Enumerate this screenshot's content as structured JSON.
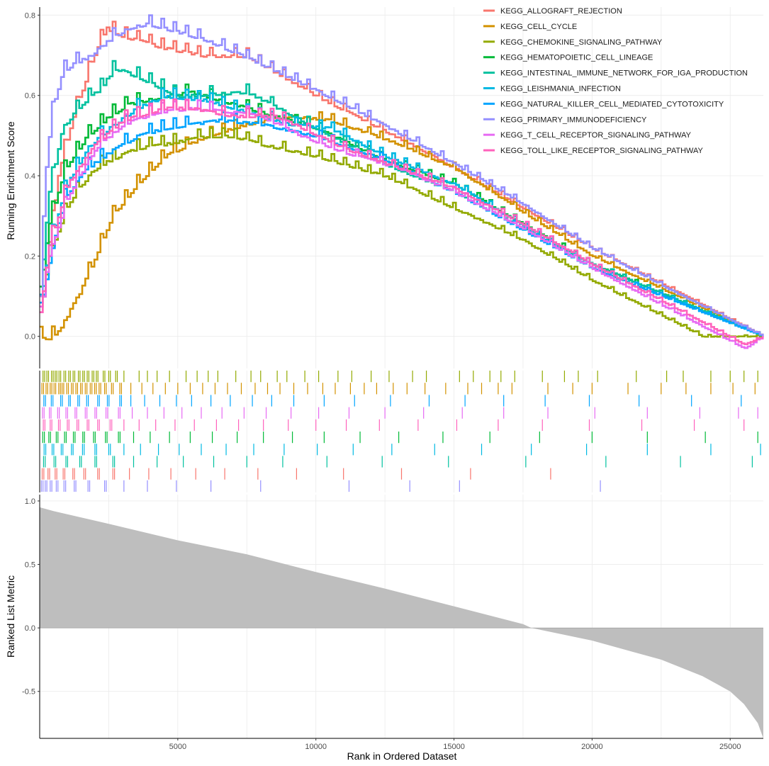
{
  "chart_data": {
    "type": "line",
    "title": "",
    "xlabel": "Rank in Ordered Dataset",
    "ylabel_top": "Running Enrichment Score",
    "ylabel_bottom": "Ranked List Metric",
    "x_range": [
      0,
      26200
    ],
    "x_ticks": [
      5000,
      10000,
      15000,
      20000,
      25000
    ],
    "x_tick_labels": [
      "5000",
      "10000",
      "15000",
      "20000",
      "25000"
    ],
    "es_ylim": [
      -0.08,
      0.82
    ],
    "es_y_ticks": [
      0.0,
      0.2,
      0.4,
      0.6,
      0.8
    ],
    "es_y_tick_labels": [
      "0.0",
      "0.2",
      "0.4",
      "0.6",
      "0.8"
    ],
    "metric_ylim": [
      -0.87,
      1.05
    ],
    "metric_y_ticks": [
      -0.5,
      0.0,
      0.5,
      1.0
    ],
    "metric_y_tick_labels": [
      "-0.5",
      "0.0",
      "0.5",
      "1.0"
    ],
    "legend_position": "top-right",
    "series": [
      {
        "name": "KEGG_ALLOGRAFT_REJECTION",
        "color": "#F8766D",
        "x": [
          0,
          300,
          700,
          1200,
          1700,
          2050,
          2400,
          3000,
          4500,
          6000,
          7500,
          10000,
          13700,
          15000,
          20000,
          26200
        ],
        "y": [
          0.06,
          0.22,
          0.42,
          0.55,
          0.65,
          0.72,
          0.77,
          0.75,
          0.72,
          0.7,
          0.7,
          0.6,
          0.47,
          0.42,
          0.22,
          0.0
        ]
      },
      {
        "name": "KEGG_CELL_CYCLE",
        "color": "#D39200",
        "x": [
          0,
          300,
          800,
          1500,
          2000,
          2600,
          3500,
          4500,
          6000,
          7500,
          9000,
          10500,
          13000,
          15000,
          20000,
          26200
        ],
        "y": [
          0.0,
          -0.01,
          0.03,
          0.12,
          0.2,
          0.3,
          0.38,
          0.45,
          0.5,
          0.53,
          0.55,
          0.54,
          0.48,
          0.42,
          0.2,
          0.0
        ]
      },
      {
        "name": "KEGG_CHEMOKINE_SIGNALING_PATHWAY",
        "color": "#93AA00",
        "x": [
          0,
          300,
          1000,
          1500,
          2000,
          2500,
          3500,
          4500,
          6000,
          7000,
          8000,
          10000,
          12500,
          15000,
          17500,
          20000,
          24000,
          26200
        ],
        "y": [
          0.05,
          0.2,
          0.33,
          0.38,
          0.42,
          0.44,
          0.47,
          0.48,
          0.5,
          0.5,
          0.48,
          0.45,
          0.4,
          0.32,
          0.24,
          0.14,
          0.0,
          0.0
        ]
      },
      {
        "name": "KEGG_HEMATOPOIETIC_CELL_LINEAGE",
        "color": "#00BA38",
        "x": [
          0,
          300,
          900,
          1700,
          2500,
          3200,
          4500,
          5500,
          7000,
          8500,
          10000,
          12500,
          15000,
          20000,
          26200
        ],
        "y": [
          0.1,
          0.28,
          0.42,
          0.5,
          0.55,
          0.58,
          0.6,
          0.61,
          0.58,
          0.55,
          0.52,
          0.44,
          0.38,
          0.18,
          0.0
        ]
      },
      {
        "name": "KEGG_INTESTINAL_IMMUNE_NETWORK_FOR_IGA_PRODUCTION",
        "color": "#00C19F",
        "x": [
          0,
          300,
          800,
          1500,
          2200,
          2700,
          3500,
          5000,
          7500,
          10000,
          12500,
          15000,
          20000,
          26200
        ],
        "y": [
          0.1,
          0.35,
          0.52,
          0.58,
          0.62,
          0.67,
          0.65,
          0.6,
          0.61,
          0.52,
          0.43,
          0.36,
          0.18,
          0.0
        ]
      },
      {
        "name": "KEGG_LEISHMANIA_INFECTION",
        "color": "#00B9E3",
        "x": [
          0,
          300,
          900,
          1700,
          2500,
          3500,
          4500,
          6000,
          7500,
          9000,
          10500,
          12500,
          15000,
          20000,
          26200
        ],
        "y": [
          0.08,
          0.22,
          0.37,
          0.47,
          0.52,
          0.57,
          0.6,
          0.59,
          0.56,
          0.53,
          0.52,
          0.45,
          0.38,
          0.17,
          0.0
        ]
      },
      {
        "name": "KEGG_NATURAL_KILLER_CELL_MEDIATED_CYTOTOXICITY",
        "color": "#00A5FF",
        "x": [
          0,
          300,
          900,
          1700,
          2500,
          3500,
          4500,
          5500,
          6500,
          8000,
          10000,
          12500,
          15000,
          20000,
          26200
        ],
        "y": [
          0.06,
          0.18,
          0.35,
          0.42,
          0.46,
          0.5,
          0.52,
          0.53,
          0.54,
          0.53,
          0.5,
          0.44,
          0.36,
          0.17,
          0.0
        ]
      },
      {
        "name": "KEGG_PRIMARY_IMMUNODEFICIENCY",
        "color": "#9590FF",
        "x": [
          0,
          150,
          400,
          800,
          1200,
          1800,
          2500,
          3200,
          3900,
          5000,
          6000,
          8000,
          11000,
          14000,
          17500,
          20000,
          23000,
          26200
        ],
        "y": [
          0.1,
          0.38,
          0.55,
          0.66,
          0.68,
          0.7,
          0.74,
          0.77,
          0.78,
          0.76,
          0.74,
          0.68,
          0.58,
          0.47,
          0.33,
          0.22,
          0.11,
          0.0
        ]
      },
      {
        "name": "KEGG_T_CELL_RECEPTOR_SIGNALING_PATHWAY",
        "color": "#E76BF3",
        "x": [
          0,
          300,
          1000,
          2000,
          3000,
          4200,
          5500,
          7000,
          8000,
          9500,
          11000,
          13000,
          15000,
          17500,
          20000,
          25500,
          26200
        ],
        "y": [
          0.05,
          0.2,
          0.35,
          0.47,
          0.53,
          0.56,
          0.57,
          0.56,
          0.55,
          0.5,
          0.46,
          0.42,
          0.36,
          0.27,
          0.17,
          -0.03,
          0.0
        ]
      },
      {
        "name": "KEGG_TOLL_LIKE_RECEPTOR_SIGNALING_PATHWAY",
        "color": "#FF62BC",
        "x": [
          0,
          300,
          1000,
          2000,
          3000,
          4500,
          5500,
          7000,
          8500,
          9500,
          11000,
          13000,
          15000,
          17500,
          20000,
          25500,
          26200
        ],
        "y": [
          0.06,
          0.22,
          0.38,
          0.48,
          0.54,
          0.57,
          0.57,
          0.55,
          0.55,
          0.52,
          0.47,
          0.42,
          0.37,
          0.28,
          0.18,
          -0.02,
          0.0
        ]
      }
    ],
    "gene_hit_rows": [
      {
        "series": "KEGG_CHEMOKINE_SIGNALING_PATHWAY",
        "color": "#93AA00",
        "hits": [
          120,
          260,
          430,
          560,
          700,
          880,
          1050,
          1210,
          1400,
          1560,
          1720,
          1900,
          2050,
          2300,
          2500,
          2750,
          3050,
          3600,
          3900,
          4250,
          4700,
          5300,
          5700,
          6100,
          6450,
          7100,
          7650,
          8000,
          8600,
          8950,
          9600,
          10100,
          10800,
          11300,
          12000,
          12650,
          13500,
          14000,
          15200,
          15700,
          16300,
          16700,
          17200,
          18200,
          19000,
          19500,
          20200,
          21600,
          22700,
          23300,
          24300,
          25000,
          25500,
          26000
        ]
      },
      {
        "series": "KEGG_CELL_CYCLE",
        "color": "#D39200",
        "hits": [
          80,
          230,
          380,
          520,
          690,
          810,
          980,
          1150,
          1310,
          1480,
          1650,
          1830,
          1990,
          2150,
          2350,
          2600,
          2900,
          3300,
          3700,
          4100,
          4550,
          5000,
          5450,
          5900,
          6350,
          6800,
          7300,
          7800,
          8250,
          8700,
          9200,
          9700,
          10250,
          10700,
          11250,
          11750,
          12200,
          12800,
          13300,
          13950,
          14700,
          15500,
          16000,
          16600,
          17100,
          18400,
          19300,
          20000,
          21300,
          22500,
          23400,
          24300,
          25100,
          25900
        ]
      },
      {
        "series": "KEGG_NATURAL_KILLER_CELL_MEDIATED_CYTOTOXICITY",
        "color": "#00A5FF",
        "hits": [
          150,
          420,
          760,
          1050,
          1380,
          1700,
          2100,
          2450,
          2900,
          3300,
          3800,
          4350,
          4950,
          5500,
          6200,
          6900,
          7700,
          8400,
          9200,
          10300,
          11400,
          12700,
          14100,
          15400,
          16800,
          18300,
          19900,
          21700,
          23600,
          25400
        ]
      },
      {
        "series": "KEGG_T_CELL_RECEPTOR_SIGNALING_PATHWAY",
        "color": "#E76BF3",
        "hits": [
          100,
          350,
          650,
          950,
          1280,
          1650,
          2000,
          2400,
          2850,
          3350,
          3900,
          4500,
          5150,
          5850,
          6600,
          7400,
          8200,
          9100,
          10100,
          11200,
          12500,
          13900,
          15300,
          16800,
          18400,
          20100,
          22000,
          23900,
          25300,
          26000
        ]
      },
      {
        "series": "KEGG_TOLL_LIKE_RECEPTOR_SIGNALING_PATHWAY",
        "color": "#FF62BC",
        "hits": [
          130,
          380,
          680,
          1000,
          1350,
          1720,
          2100,
          2550,
          3050,
          3600,
          4200,
          4900,
          5600,
          6400,
          7200,
          8100,
          9000,
          10000,
          11100,
          12300,
          13700,
          15100,
          16600,
          18200,
          19900,
          21800,
          23700,
          25500
        ]
      },
      {
        "series": "KEGG_HEMATOPOIETIC_CELL_LINEAGE",
        "color": "#00BA38",
        "hits": [
          110,
          330,
          600,
          900,
          1220,
          1560,
          1950,
          2380,
          2850,
          3400,
          4000,
          4700,
          5450,
          6250,
          7150,
          8100,
          9150,
          10300,
          11600,
          13000,
          14600,
          16300,
          18100,
          20000,
          22000,
          24100,
          26000
        ]
      },
      {
        "series": "KEGG_LEISHMANIA_INFECTION",
        "color": "#00B9E3",
        "hits": [
          160,
          450,
          780,
          1150,
          1550,
          2000,
          2500,
          3050,
          3650,
          4300,
          5050,
          5850,
          6750,
          7750,
          8850,
          10050,
          11350,
          12750,
          14300,
          16000,
          17800,
          19800,
          22000,
          24300,
          26100
        ]
      },
      {
        "series": "KEGG_INTESTINAL_IMMUNE_NETWORK_FOR_IGA_PRODUCTION",
        "color": "#00C19F",
        "hits": [
          140,
          520,
          950,
          1450,
          2000,
          2650,
          3400,
          4250,
          5200,
          6300,
          7500,
          8800,
          10400,
          12400,
          14800,
          17600,
          20500,
          23200,
          25800
        ]
      },
      {
        "series": "KEGG_ALLOGRAFT_REJECTION",
        "color": "#F8766D",
        "hits": [
          90,
          300,
          560,
          850,
          1200,
          1600,
          2100,
          2650,
          3250,
          3950,
          4750,
          5650,
          6700,
          7900,
          9300,
          11000,
          13100,
          15600,
          18500
        ]
      },
      {
        "series": "KEGG_PRIMARY_IMMUNODEFICIENCY",
        "color": "#9590FF",
        "hits": [
          60,
          200,
          380,
          600,
          880,
          1250,
          1750,
          2350,
          3050,
          3900,
          4950,
          6200,
          8000,
          11200,
          13400,
          15200,
          20300
        ]
      }
    ],
    "ranked_metric": {
      "color": "#BEBEBE",
      "x": [
        0,
        500,
        2500,
        5000,
        7500,
        10000,
        12500,
        15000,
        17500,
        17800,
        20000,
        22500,
        24000,
        25000,
        25500,
        26000,
        26200
      ],
      "y": [
        0.95,
        0.92,
        0.82,
        0.69,
        0.58,
        0.44,
        0.31,
        0.17,
        0.03,
        0.0,
        -0.1,
        -0.25,
        -0.38,
        -0.5,
        -0.6,
        -0.75,
        -0.87
      ]
    }
  }
}
